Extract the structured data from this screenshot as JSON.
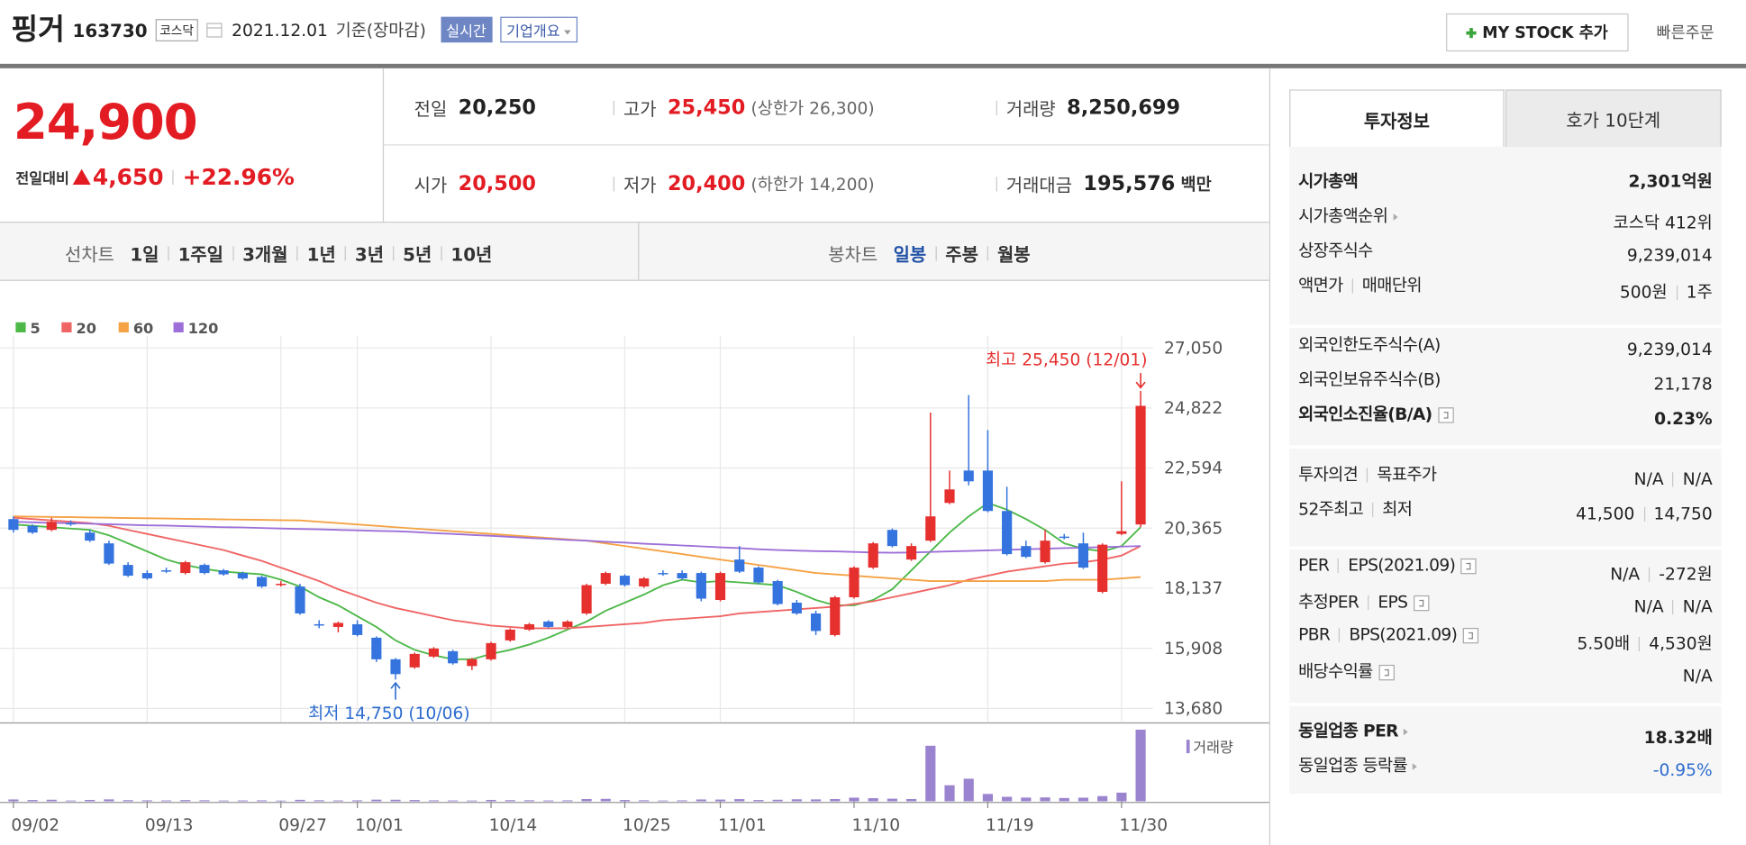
{
  "header": {
    "name": "핑거",
    "code": "163730",
    "market": "코스닥",
    "date": "2021.12.01",
    "basis": "기준(장마감)",
    "realtime": "실시간",
    "overview": "기업개요",
    "my_stock": "MY STOCK 추가",
    "quick_order": "빠른주문"
  },
  "summary": {
    "price": "24,900",
    "change_label": "전일대비",
    "change": "4,650",
    "change_rate": "+22.96%",
    "items": [
      {
        "label": "전일",
        "value": "20,250"
      },
      {
        "label": "고가",
        "value": "25,450",
        "note": "(상한가 26,300)"
      },
      {
        "label": "거래량",
        "value": "8,250,699"
      },
      {
        "label": "시가",
        "value": "20,500"
      },
      {
        "label": "저가",
        "value": "20,400",
        "note": "(하한가 14,200)"
      },
      {
        "label": "거래대금",
        "value": "195,576",
        "unit": "백만"
      }
    ]
  },
  "chart_tabs": {
    "line_label": "선차트",
    "line_periods": [
      "1일",
      "1주일",
      "3개월",
      "1년",
      "3년",
      "5년",
      "10년"
    ],
    "candle_label": "봉차트",
    "candle_periods": [
      "일봉",
      "주봉",
      "월봉"
    ]
  },
  "chart_data": {
    "type": "candlestick",
    "up_color": "#e5302e",
    "down_color": "#3574de",
    "categories": [
      "09/02",
      null,
      null,
      null,
      null,
      null,
      null,
      "09/13",
      null,
      null,
      null,
      null,
      null,
      null,
      "09/27",
      null,
      null,
      null,
      "10/01",
      null,
      null,
      null,
      null,
      null,
      null,
      "10/14",
      null,
      null,
      null,
      null,
      null,
      null,
      "10/25",
      null,
      null,
      null,
      null,
      "11/01",
      null,
      null,
      null,
      null,
      null,
      null,
      "11/10",
      null,
      null,
      null,
      null,
      null,
      null,
      "11/19",
      null,
      null,
      null,
      null,
      null,
      null,
      "11/30",
      null
    ],
    "open": [
      20700,
      20450,
      20300,
      20550,
      20200,
      19800,
      19000,
      18700,
      18800,
      18700,
      19000,
      18800,
      18700,
      18550,
      18300,
      18200,
      16800,
      16700,
      16800,
      16300,
      15500,
      15200,
      15600,
      15800,
      15250,
      15500,
      16200,
      16600,
      16900,
      16700,
      17200,
      18300,
      18600,
      18200,
      18700,
      18700,
      18700,
      17700,
      19200,
      18900,
      18400,
      17600,
      17200,
      16400,
      17800,
      18900,
      20300,
      19200,
      19900,
      21300,
      22500,
      22500,
      21000,
      19700,
      19100,
      20050,
      19800,
      18000,
      20150,
      20500
    ],
    "high": [
      20800,
      20500,
      20750,
      20650,
      20300,
      19900,
      19100,
      18800,
      18900,
      19150,
      19050,
      18850,
      18750,
      18600,
      18400,
      18300,
      16950,
      16900,
      16950,
      16350,
      15550,
      15750,
      15950,
      15850,
      15550,
      16150,
      16650,
      16850,
      16950,
      16950,
      18300,
      18750,
      18650,
      18550,
      18800,
      18800,
      18750,
      18750,
      19700,
      18950,
      18450,
      17700,
      17300,
      17850,
      18950,
      19850,
      20350,
      19800,
      24650,
      22500,
      25300,
      24000,
      21900,
      19900,
      20300,
      20150,
      20200,
      19800,
      22100,
      25450
    ],
    "low": [
      20200,
      20150,
      20250,
      20450,
      19850,
      19000,
      18550,
      18450,
      18700,
      18650,
      18650,
      18600,
      18450,
      18150,
      18200,
      17150,
      16650,
      16500,
      16350,
      15400,
      14750,
      15150,
      15550,
      15300,
      15100,
      15450,
      16150,
      16550,
      16650,
      16650,
      17150,
      18250,
      18200,
      18150,
      18600,
      18450,
      17650,
      17650,
      18700,
      18300,
      17500,
      17150,
      16400,
      16350,
      17750,
      18850,
      19650,
      19150,
      19850,
      21250,
      21950,
      20950,
      19350,
      19250,
      19050,
      19950,
      18850,
      17950,
      20100,
      20400
    ],
    "close": [
      20300,
      20200,
      20600,
      20500,
      19900,
      19050,
      18600,
      18500,
      18750,
      19100,
      18700,
      18650,
      18500,
      18200,
      18300,
      17200,
      16750,
      16850,
      16400,
      15500,
      14950,
      15700,
      15900,
      15350,
      15500,
      16100,
      16600,
      16800,
      16700,
      16900,
      18250,
      18700,
      18250,
      18500,
      18650,
      18500,
      17750,
      18700,
      18750,
      18350,
      17550,
      17200,
      16550,
      17800,
      18900,
      19800,
      19700,
      19700,
      20800,
      21800,
      22100,
      21000,
      19400,
      19300,
      19900,
      20000,
      18900,
      19750,
      20250,
      24900
    ],
    "moving_averages": [
      {
        "name": "5",
        "color": "#4cb848",
        "values": [
          20500,
          20450,
          20400,
          20350,
          20300,
          20100,
          19800,
          19500,
          19200,
          19000,
          18850,
          18750,
          18700,
          18650,
          18450,
          18200,
          17800,
          17500,
          17100,
          16700,
          16200,
          15850,
          15650,
          15500,
          15500,
          15700,
          15850,
          16050,
          16300,
          16600,
          16900,
          17300,
          17600,
          17900,
          18250,
          18450,
          18350,
          18400,
          18350,
          18300,
          18250,
          18000,
          17700,
          17500,
          17500,
          17700,
          18100,
          18800,
          19500,
          20200,
          20800,
          21300,
          21050,
          20700,
          20300,
          19800,
          19600,
          19500,
          19700,
          20400
        ]
      },
      {
        "name": "20",
        "color": "#f06464",
        "values": [
          20750,
          20700,
          20650,
          20600,
          20550,
          20450,
          20300,
          20150,
          20000,
          19850,
          19700,
          19550,
          19350,
          19150,
          18900,
          18650,
          18400,
          18100,
          17850,
          17600,
          17400,
          17250,
          17100,
          16950,
          16850,
          16750,
          16700,
          16650,
          16650,
          16650,
          16700,
          16750,
          16800,
          16850,
          16950,
          17000,
          17050,
          17100,
          17200,
          17250,
          17300,
          17350,
          17400,
          17450,
          17550,
          17650,
          17800,
          17950,
          18100,
          18250,
          18450,
          18600,
          18750,
          18850,
          18950,
          19050,
          19100,
          19200,
          19350,
          19700
        ]
      },
      {
        "name": "60",
        "color": "#f5a244",
        "values": [
          20800,
          20790,
          20780,
          20770,
          20760,
          20750,
          20740,
          20730,
          20720,
          20710,
          20700,
          20690,
          20680,
          20670,
          20660,
          20650,
          20600,
          20550,
          20500,
          20450,
          20400,
          20350,
          20300,
          20250,
          20200,
          20150,
          20100,
          20050,
          20000,
          19950,
          19900,
          19800,
          19700,
          19600,
          19500,
          19400,
          19300,
          19200,
          19100,
          19000,
          18900,
          18800,
          18700,
          18650,
          18600,
          18550,
          18500,
          18450,
          18400,
          18400,
          18400,
          18400,
          18400,
          18400,
          18400,
          18450,
          18450,
          18450,
          18500,
          18550
        ]
      },
      {
        "name": "120",
        "color": "#9d6fd8",
        "values": [
          20600,
          20580,
          20560,
          20550,
          20530,
          20510,
          20490,
          20470,
          20460,
          20440,
          20420,
          20400,
          20390,
          20370,
          20350,
          20330,
          20320,
          20300,
          20280,
          20260,
          20250,
          20220,
          20180,
          20150,
          20110,
          20080,
          20040,
          20000,
          19970,
          19930,
          19900,
          19860,
          19830,
          19790,
          19760,
          19720,
          19690,
          19650,
          19620,
          19580,
          19550,
          19530,
          19510,
          19500,
          19480,
          19460,
          19450,
          19460,
          19480,
          19500,
          19520,
          19540,
          19560,
          19580,
          19600,
          19620,
          19640,
          19660,
          19680,
          19700
        ]
      }
    ],
    "volume": {
      "label": "거래량",
      "color": "#9b84cf",
      "values": [
        210000,
        150000,
        180000,
        90000,
        160000,
        220000,
        130000,
        110000,
        100000,
        140000,
        120000,
        90000,
        100000,
        110000,
        80000,
        170000,
        120000,
        100000,
        110000,
        190000,
        180000,
        150000,
        110000,
        100000,
        90000,
        160000,
        130000,
        120000,
        100000,
        110000,
        260000,
        280000,
        150000,
        120000,
        90000,
        110000,
        210000,
        200000,
        250000,
        150000,
        180000,
        230000,
        220000,
        260000,
        420000,
        360000,
        300000,
        260000,
        6400000,
        1850000,
        2600000,
        850000,
        520000,
        430000,
        450000,
        380000,
        420000,
        600000,
        1000000,
        8250699
      ]
    },
    "annotations": {
      "high": "최고 25,450 (12/01)",
      "low": "최저 14,750 (10/06)"
    },
    "ylim": [
      13180,
      27500
    ],
    "yticks": [
      {
        "value": 27050,
        "label": "27,050"
      },
      {
        "value": 24822,
        "label": "24,822"
      },
      {
        "value": 22594,
        "label": "22,594"
      },
      {
        "value": 20365,
        "label": "20,365"
      },
      {
        "value": 18137,
        "label": "18,137"
      },
      {
        "value": 15908,
        "label": "15,908"
      },
      {
        "value": 13680,
        "label": "13,680"
      }
    ],
    "grid": true
  },
  "invest_info": {
    "tabs": [
      "투자정보",
      "호가 10단계"
    ],
    "sections": [
      [
        {
          "label": [
            "시가총액"
          ],
          "value": [
            "2,301억원"
          ]
        },
        {
          "label": [
            "시가총액순위"
          ],
          "value": [
            "코스닥 412위"
          ]
        },
        {
          "label": [
            "상장주식수"
          ],
          "value": [
            "9,239,014"
          ]
        },
        {
          "label": [
            "액면가",
            "매매단위"
          ],
          "value": [
            "500원",
            "1주"
          ]
        }
      ],
      [
        {
          "label": [
            "외국인한도주식수(A)"
          ],
          "value": [
            "9,239,014"
          ]
        },
        {
          "label": [
            "외국인보유주식수(B)"
          ],
          "value": [
            "21,178"
          ]
        },
        {
          "label": [
            "외국인소진율(B/A)"
          ],
          "value": [
            "0.23%"
          ]
        }
      ],
      [
        {
          "label": [
            "투자의견",
            "목표주가"
          ],
          "value": [
            "N/A",
            "N/A"
          ]
        },
        {
          "label": [
            "52주최고",
            "최저"
          ],
          "value": [
            "41,500",
            "14,750"
          ]
        }
      ],
      [
        {
          "label": [
            "PER",
            "EPS(2021.09)"
          ],
          "value": [
            "N/A",
            "-272원"
          ]
        },
        {
          "label": [
            "추정PER",
            "EPS"
          ],
          "value": [
            "N/A",
            "N/A"
          ]
        },
        {
          "label": [
            "PBR",
            "BPS(2021.09)"
          ],
          "value": [
            "5.50배",
            "4,530원"
          ]
        },
        {
          "label": [
            "배당수익률"
          ],
          "value": [
            "N/A"
          ]
        }
      ],
      [
        {
          "label": [
            "동일업종 PER"
          ],
          "value": [
            "18.32배"
          ]
        },
        {
          "label": [
            "동일업종 등락률"
          ],
          "value": [
            "-0.95%"
          ]
        }
      ]
    ]
  }
}
